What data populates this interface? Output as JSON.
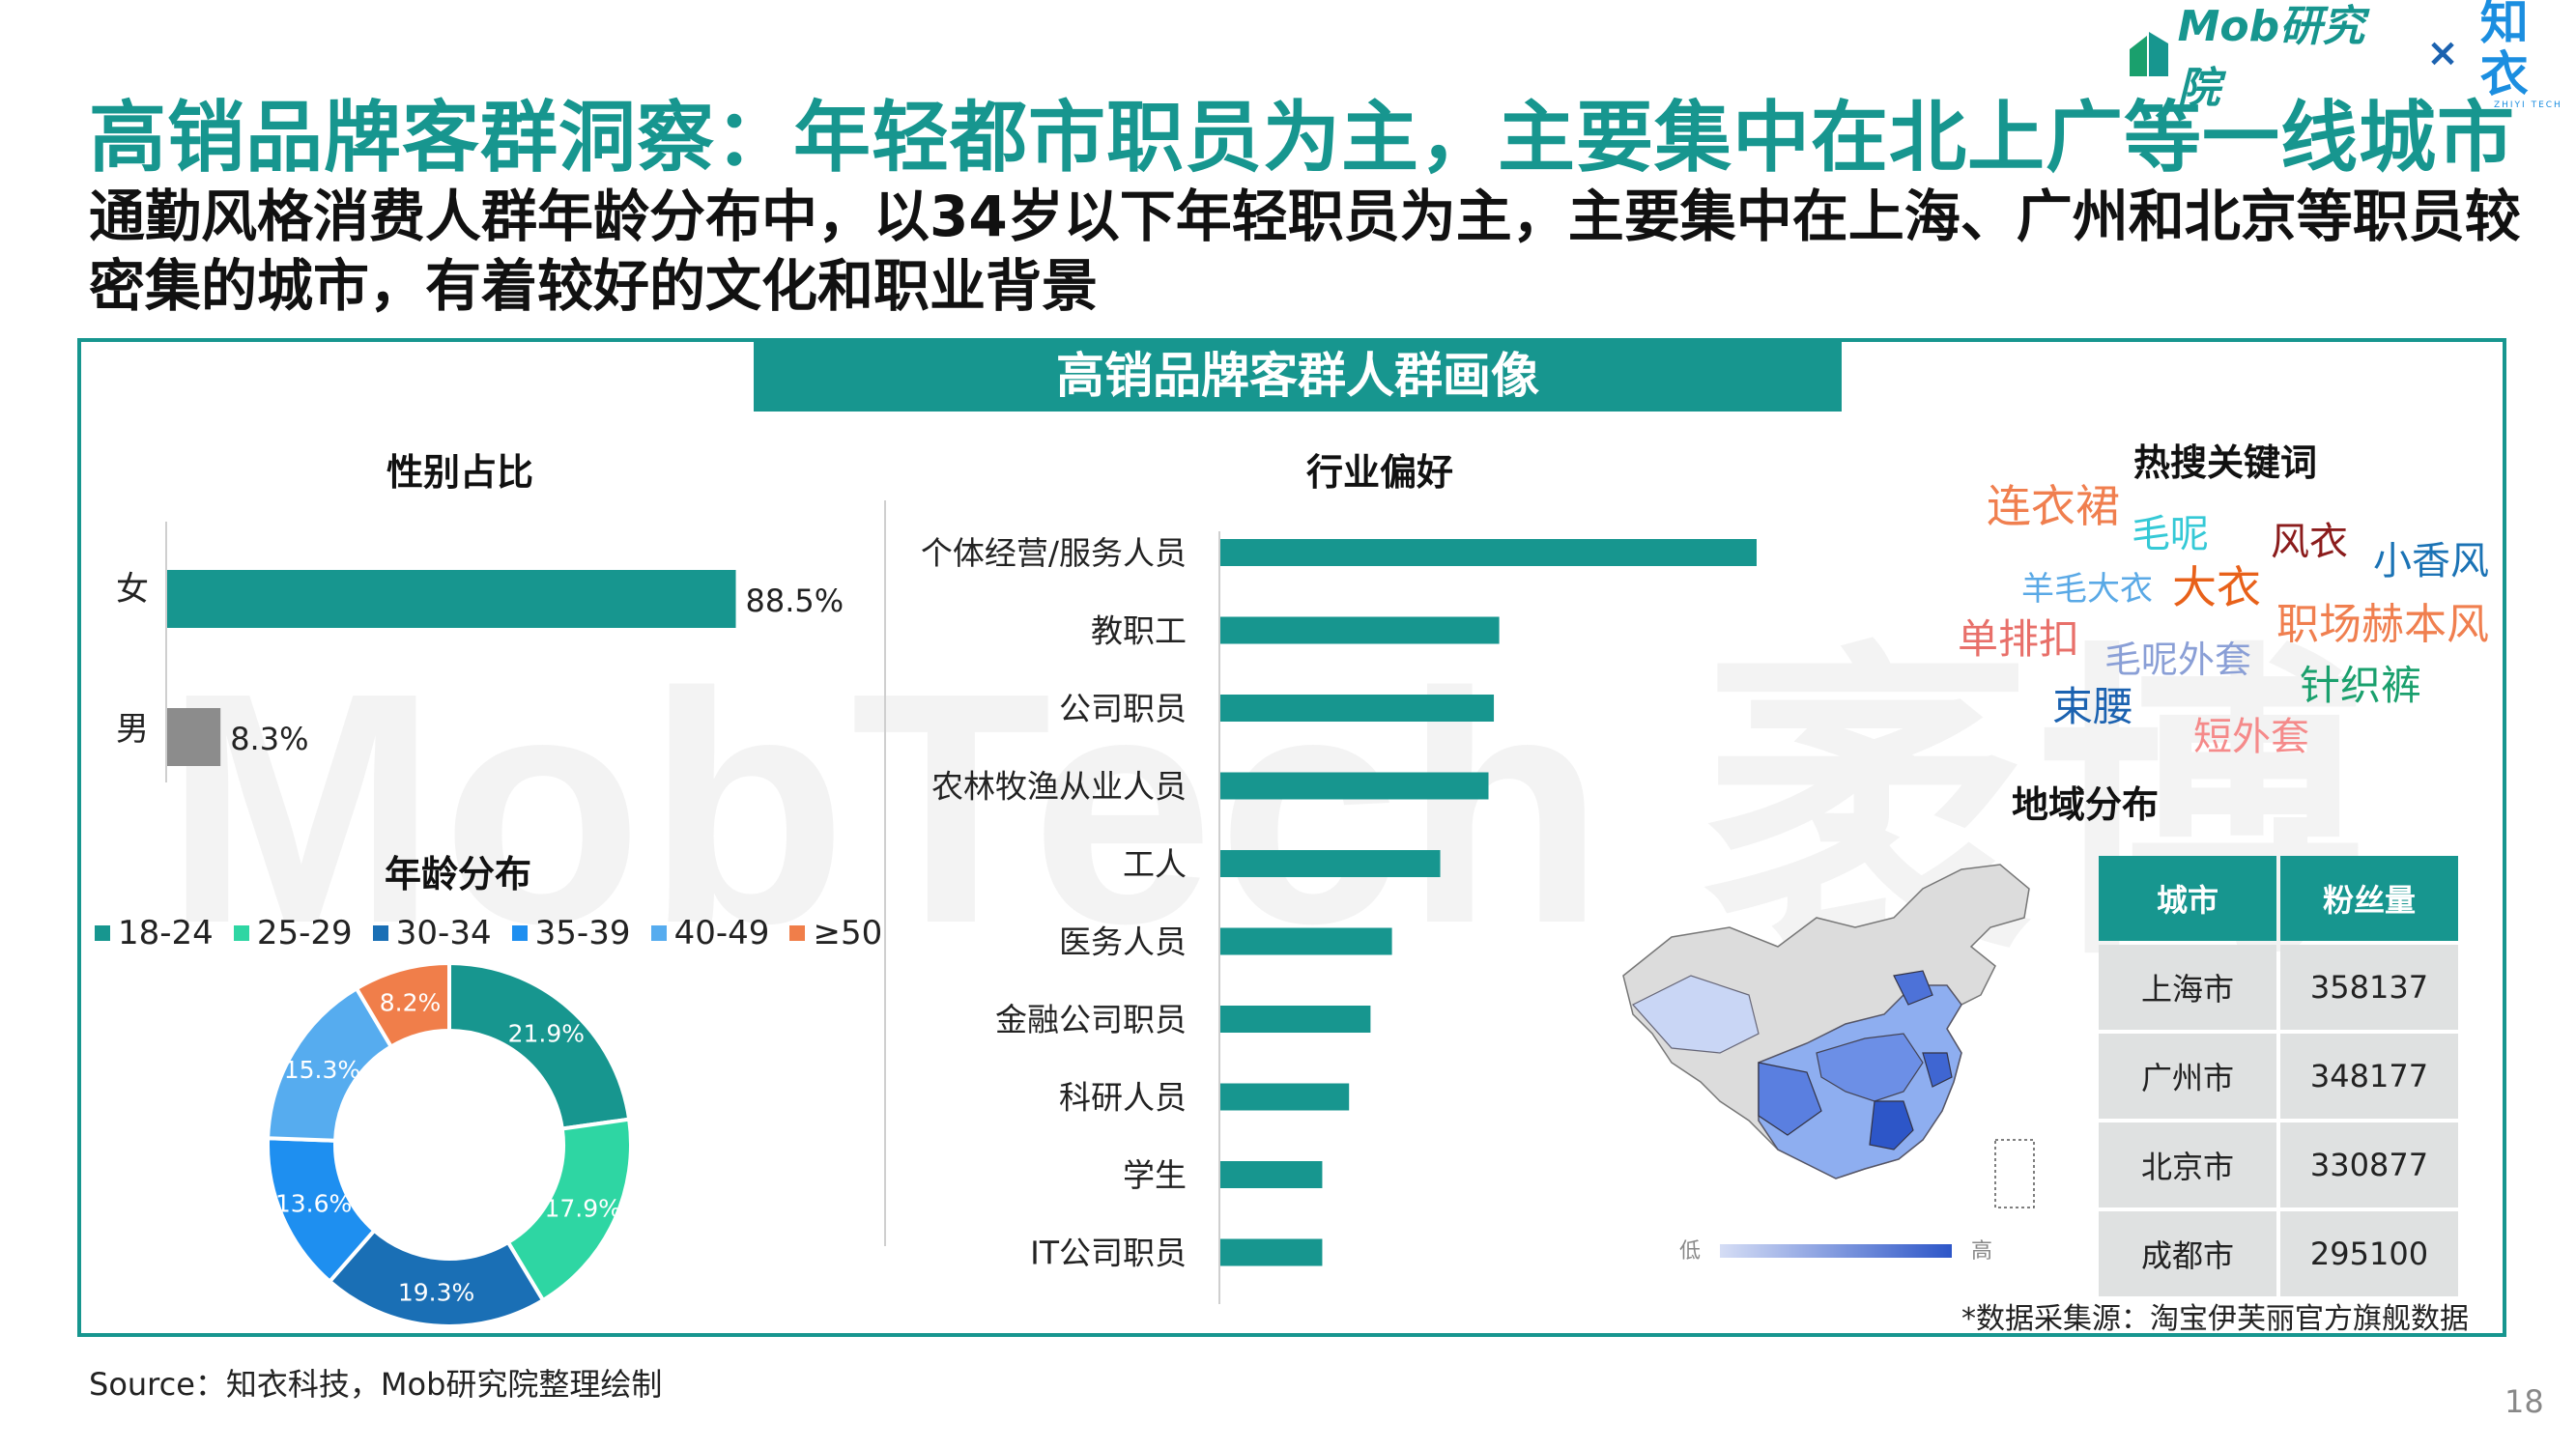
{
  "header": {
    "title": "高销品牌客群洞察：年轻都市职员为主，主要集中在北上广等一线城市",
    "subtitle": "通勤风格消费人群年龄分布中，以34岁以下年轻职员为主，主要集中在上海、广州和北京等职员较密集的城市，有着较好的文化和职业背景",
    "brand_mob": "Mob研究院",
    "brand_x": "×",
    "brand_zhiyi": "知衣",
    "brand_zhiyi_sub": "ZHIYI TECH",
    "watermark": "MobTech 袤博"
  },
  "panel": {
    "title": "高销品牌客群人群画像"
  },
  "colors": {
    "accent": "#17968f",
    "gray": "#8c8c8c"
  },
  "gender": {
    "title": "性别占比",
    "labels": [
      "女",
      "男"
    ],
    "values": [
      88.5,
      8.3
    ],
    "value_labels": [
      "88.5%",
      "8.3%"
    ]
  },
  "age": {
    "title": "年龄分布",
    "legend": [
      "18-24",
      "25-29",
      "30-34",
      "35-39",
      "40-49",
      "≥50"
    ]
  },
  "industry": {
    "title": "行业偏好"
  },
  "keywords": {
    "title": "热搜关键词",
    "items": [
      {
        "text": "连衣裙",
        "color": "#f07f4f"
      },
      {
        "text": "毛呢",
        "color": "#35c9d6"
      },
      {
        "text": "风衣",
        "color": "#8b1c1c"
      },
      {
        "text": "小香风",
        "color": "#1b73b5"
      },
      {
        "text": "羊毛大衣",
        "color": "#5aa9e6"
      },
      {
        "text": "大衣",
        "color": "#e8611a"
      },
      {
        "text": "职场赫本风",
        "color": "#f07f4f"
      },
      {
        "text": "单排扣",
        "color": "#e8706a"
      },
      {
        "text": "毛呢外套",
        "color": "#8a9fd6"
      },
      {
        "text": "针织裤",
        "color": "#1aa06d"
      },
      {
        "text": "束腰",
        "color": "#1b62b0"
      },
      {
        "text": "短外套",
        "color": "#f58a8a"
      }
    ]
  },
  "region": {
    "title": "地域分布",
    "legend_low": "低",
    "legend_high": "高",
    "table_headers": [
      "城市",
      "粉丝量"
    ],
    "rows": [
      {
        "city": "上海市",
        "fans": "358137"
      },
      {
        "city": "广州市",
        "fans": "348177"
      },
      {
        "city": "北京市",
        "fans": "330877"
      },
      {
        "city": "成都市",
        "fans": "295100"
      }
    ],
    "footnote": "*数据采集源：淘宝伊芙丽官方旗舰数据"
  },
  "source": "Source：知衣科技，Mob研究院整理绘制",
  "page_number": "18",
  "chart_data": [
    {
      "type": "bar",
      "title": "性别占比",
      "orientation": "horizontal",
      "categories": [
        "女",
        "男"
      ],
      "values": [
        88.5,
        8.3
      ],
      "unit": "%",
      "series_colors": [
        "#17968f",
        "#8c8c8c"
      ]
    },
    {
      "type": "pie",
      "title": "年龄分布",
      "donut": true,
      "labels": [
        "18-24",
        "25-29",
        "30-34",
        "35-39",
        "40-49",
        "≥50"
      ],
      "values": [
        21.9,
        17.9,
        19.3,
        13.6,
        15.3,
        8.2
      ],
      "value_labels": [
        "21.9%",
        "17.9%",
        "19.3%",
        "13.6%",
        "15.3%",
        "8.2%"
      ],
      "colors": [
        "#17968f",
        "#2ed6a3",
        "#1a6fb5",
        "#1e8ff0",
        "#56acef",
        "#f07e4a"
      ],
      "legend": "top"
    },
    {
      "type": "bar",
      "title": "行业偏好",
      "orientation": "horizontal",
      "categories": [
        "个体经营/服务人员",
        "教职工",
        "公司职员",
        "农林牧渔从业人员",
        "工人",
        "医务人员",
        "金融公司职员",
        "科研人员",
        "学生",
        "IT公司职员"
      ],
      "values": [
        100,
        52,
        51,
        50,
        41,
        32,
        28,
        24,
        19,
        19
      ],
      "value_unit": "relative, no axis printed",
      "color": "#17968f"
    }
  ]
}
